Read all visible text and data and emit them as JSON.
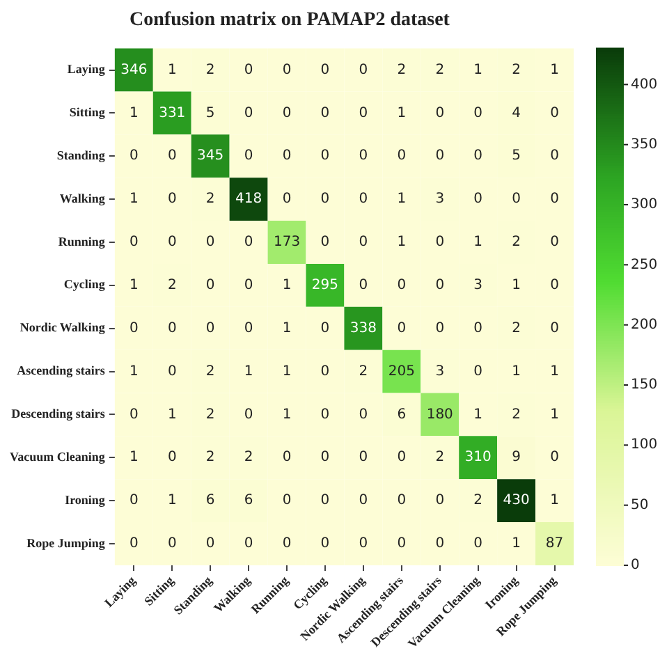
{
  "chart_data": {
    "type": "heatmap",
    "title": "Confusion matrix on PAMAP2 dataset",
    "categories": [
      "Laying",
      "Sitting",
      "Standing",
      "Walking",
      "Running",
      "Cycling",
      "Nordic Walking",
      "Ascending stairs",
      "Descending stairs",
      "Vacuum Cleaning",
      "Ironing",
      "Rope Jumping"
    ],
    "y_categories": [
      "Laying",
      "Sitting",
      "Standing",
      "Walking",
      "Running",
      "Cycling",
      "Nordic Walking",
      "Ascending stairs",
      "Descending stairs",
      "Vacuum Cleaning",
      "Ironing",
      "Rope Jumping"
    ],
    "cells": [
      [
        346,
        1,
        2,
        0,
        0,
        0,
        0,
        2,
        2,
        1,
        2,
        1
      ],
      [
        1,
        331,
        5,
        0,
        0,
        0,
        0,
        1,
        0,
        0,
        4,
        0
      ],
      [
        0,
        0,
        345,
        0,
        0,
        0,
        0,
        0,
        0,
        0,
        5,
        0
      ],
      [
        1,
        0,
        2,
        418,
        0,
        0,
        0,
        1,
        3,
        0,
        0,
        0
      ],
      [
        0,
        0,
        0,
        0,
        173,
        0,
        0,
        1,
        0,
        1,
        2,
        0
      ],
      [
        1,
        2,
        0,
        0,
        1,
        295,
        0,
        0,
        0,
        3,
        1,
        0
      ],
      [
        0,
        0,
        0,
        0,
        1,
        0,
        338,
        0,
        0,
        0,
        2,
        0
      ],
      [
        1,
        0,
        2,
        1,
        1,
        0,
        2,
        205,
        3,
        0,
        1,
        1
      ],
      [
        0,
        1,
        2,
        0,
        1,
        0,
        0,
        6,
        180,
        1,
        2,
        1
      ],
      [
        1,
        0,
        2,
        2,
        0,
        0,
        0,
        0,
        2,
        310,
        9,
        0
      ],
      [
        0,
        1,
        6,
        6,
        0,
        0,
        0,
        0,
        0,
        2,
        430,
        1
      ],
      [
        0,
        0,
        0,
        0,
        0,
        0,
        0,
        0,
        0,
        0,
        1,
        87
      ]
    ],
    "clim": [
      0,
      430
    ],
    "cticks": [
      0,
      50,
      100,
      150,
      200,
      250,
      300,
      350,
      400
    ],
    "data_labels": true
  }
}
